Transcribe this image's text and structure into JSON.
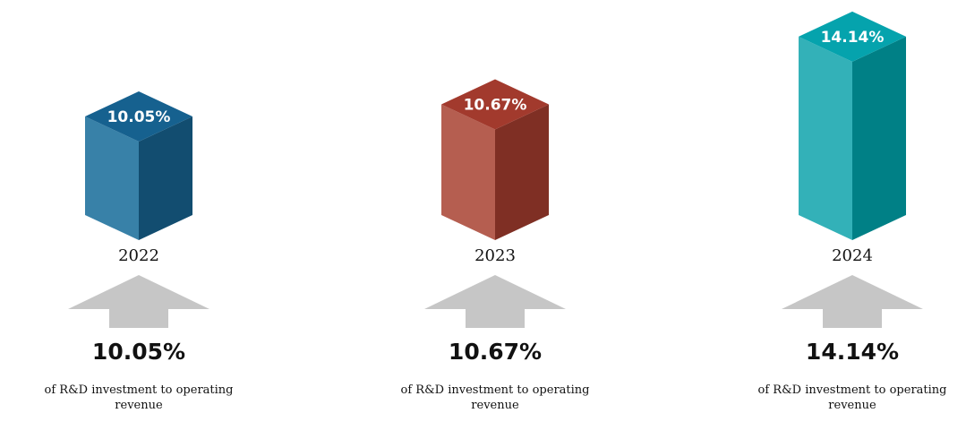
{
  "chart_data": {
    "type": "bar",
    "style": "3d-isometric-blocks",
    "categories": [
      "2022",
      "2023",
      "2024"
    ],
    "values": [
      10.05,
      10.67,
      14.14
    ],
    "value_labels": [
      "10.05%",
      "10.67%",
      "14.14%"
    ],
    "caption": "of R&D investment to operating revenue",
    "caption_lines": [
      "of R&D investment to operating",
      "revenue"
    ],
    "colors": [
      {
        "top": "#16618f",
        "left": "#3881a8",
        "right": "#124d70"
      },
      {
        "top": "#a23a2d",
        "left": "#b55e50",
        "right": "#7f2f24"
      },
      {
        "top": "#05a3ad",
        "left": "#33b1b8",
        "right": "#008086"
      }
    ],
    "arrow_color": "#c6c6c6",
    "grid": false
  }
}
